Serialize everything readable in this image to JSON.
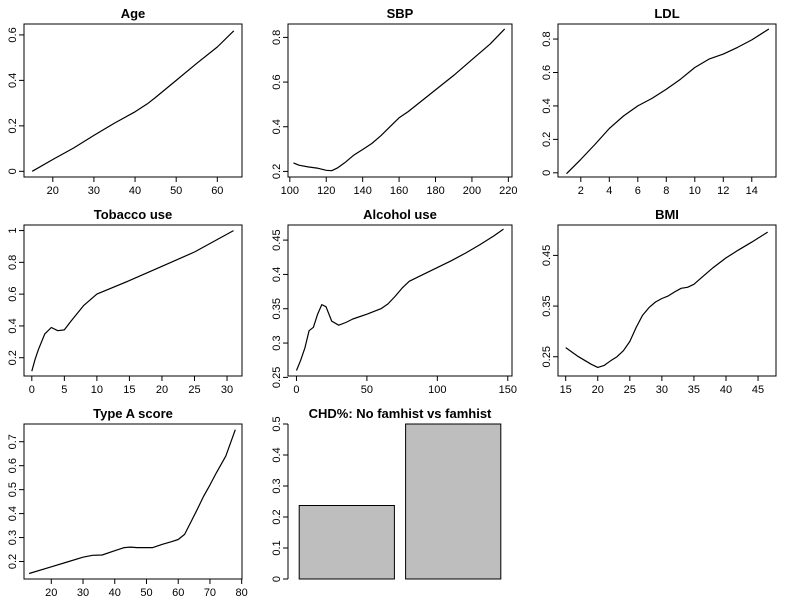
{
  "page": {
    "background": "#ffffff",
    "line_color": "#000000",
    "bar_fill": "#bebebe",
    "bar_stroke": "#000000"
  },
  "chart_data": [
    {
      "id": "age",
      "type": "line",
      "title": "Age",
      "xlabel": "",
      "ylabel": "",
      "xlim": [
        13.0,
        66.0
      ],
      "ylim": [
        -0.025,
        0.648
      ],
      "xticks": [
        20,
        30,
        40,
        50,
        60
      ],
      "yticks": [
        0.0,
        0.2,
        0.4,
        0.6
      ],
      "series": [
        {
          "x": [
            15,
            20,
            25,
            30,
            35,
            40,
            43,
            45,
            50,
            55,
            60,
            64
          ],
          "y": [
            0.0,
            0.052,
            0.102,
            0.158,
            0.212,
            0.262,
            0.297,
            0.325,
            0.4,
            0.475,
            0.547,
            0.618
          ]
        }
      ]
    },
    {
      "id": "sbp",
      "type": "line",
      "title": "SBP",
      "xlabel": "",
      "ylabel": "",
      "xlim": [
        99.0,
        222.0
      ],
      "ylim": [
        0.175,
        0.86
      ],
      "xticks": [
        100,
        120,
        140,
        160,
        180,
        200,
        220
      ],
      "yticks": [
        0.2,
        0.4,
        0.6,
        0.8
      ],
      "series": [
        {
          "x": [
            102,
            105,
            110,
            115,
            120,
            123,
            126,
            130,
            135,
            140,
            145,
            150,
            155,
            160,
            165,
            170,
            180,
            190,
            200,
            210,
            218
          ],
          "y": [
            0.238,
            0.228,
            0.22,
            0.215,
            0.205,
            0.203,
            0.215,
            0.238,
            0.272,
            0.298,
            0.325,
            0.36,
            0.4,
            0.44,
            0.468,
            0.5,
            0.565,
            0.63,
            0.7,
            0.77,
            0.838
          ]
        }
      ]
    },
    {
      "id": "ldl",
      "type": "line",
      "title": "LDL",
      "xlabel": "",
      "ylabel": "",
      "xlim": [
        0.4,
        15.7
      ],
      "ylim": [
        -0.025,
        0.89
      ],
      "xticks": [
        2,
        4,
        6,
        8,
        10,
        12,
        14
      ],
      "yticks": [
        0.0,
        0.2,
        0.4,
        0.6,
        0.8
      ],
      "series": [
        {
          "x": [
            1,
            2,
            3,
            4,
            5,
            6,
            7,
            8,
            9,
            10,
            11,
            12,
            13,
            14,
            15.2
          ],
          "y": [
            -0.005,
            0.08,
            0.17,
            0.265,
            0.34,
            0.4,
            0.445,
            0.5,
            0.56,
            0.63,
            0.68,
            0.71,
            0.75,
            0.795,
            0.86
          ]
        }
      ]
    },
    {
      "id": "tobacco",
      "type": "line",
      "title": "Tobacco use",
      "xlabel": "",
      "ylabel": "",
      "xlim": [
        -1.2,
        32.3
      ],
      "ylim": [
        0.085,
        1.035
      ],
      "xticks": [
        0,
        5,
        10,
        15,
        20,
        25,
        30
      ],
      "yticks": [
        0.2,
        0.4,
        0.6,
        0.8,
        1.0
      ],
      "series": [
        {
          "x": [
            0,
            0.5,
            1,
            2,
            3,
            4,
            5,
            6,
            7,
            8,
            9,
            10,
            15,
            20,
            25,
            31
          ],
          "y": [
            0.115,
            0.19,
            0.25,
            0.35,
            0.39,
            0.37,
            0.375,
            0.43,
            0.48,
            0.53,
            0.565,
            0.6,
            0.685,
            0.775,
            0.865,
            1.0
          ]
        }
      ]
    },
    {
      "id": "alcohol",
      "type": "line",
      "title": "Alcohol use",
      "xlabel": "",
      "ylabel": "",
      "xlim": [
        -6.0,
        153.0
      ],
      "ylim": [
        0.252,
        0.472
      ],
      "xticks": [
        0,
        50,
        100,
        150
      ],
      "yticks": [
        0.25,
        0.3,
        0.35,
        0.4,
        0.45
      ],
      "series": [
        {
          "x": [
            0,
            3,
            6,
            9,
            12,
            15,
            18,
            21,
            25,
            30,
            35,
            40,
            50,
            60,
            65,
            70,
            75,
            80,
            90,
            100,
            110,
            120,
            130,
            140,
            147
          ],
          "y": [
            0.26,
            0.275,
            0.293,
            0.318,
            0.323,
            0.342,
            0.356,
            0.353,
            0.332,
            0.326,
            0.33,
            0.335,
            0.342,
            0.35,
            0.357,
            0.368,
            0.38,
            0.39,
            0.4,
            0.41,
            0.42,
            0.431,
            0.443,
            0.456,
            0.466
          ]
        }
      ]
    },
    {
      "id": "bmi",
      "type": "line",
      "title": "BMI",
      "xlabel": "",
      "ylabel": "",
      "xlim": [
        13.8,
        47.8
      ],
      "ylim": [
        0.212,
        0.51
      ],
      "xticks": [
        15,
        20,
        25,
        30,
        35,
        40,
        45
      ],
      "yticks": [
        0.25,
        0.35,
        0.45
      ],
      "series": [
        {
          "x": [
            15,
            17,
            19,
            20,
            21,
            22,
            23,
            24,
            25,
            26,
            27,
            28,
            29,
            30,
            31,
            32,
            33,
            34,
            35,
            36,
            38,
            40,
            42,
            44,
            46.5
          ],
          "y": [
            0.268,
            0.25,
            0.235,
            0.229,
            0.233,
            0.242,
            0.25,
            0.262,
            0.28,
            0.308,
            0.332,
            0.347,
            0.358,
            0.365,
            0.37,
            0.378,
            0.385,
            0.387,
            0.393,
            0.404,
            0.426,
            0.445,
            0.461,
            0.476,
            0.496
          ]
        }
      ]
    },
    {
      "id": "typea",
      "type": "line",
      "title": "Type A score",
      "xlabel": "",
      "ylabel": "",
      "xlim": [
        11.4,
        80.1
      ],
      "ylim": [
        0.127,
        0.774
      ],
      "xticks": [
        20,
        30,
        40,
        50,
        60,
        70,
        80
      ],
      "yticks": [
        0.2,
        0.3,
        0.4,
        0.5,
        0.6,
        0.7
      ],
      "series": [
        {
          "x": [
            13,
            20,
            25,
            30,
            33,
            36,
            40,
            43,
            45,
            47,
            50,
            52,
            55,
            58,
            60,
            62,
            64,
            66,
            68,
            70,
            72,
            75,
            78
          ],
          "y": [
            0.15,
            0.178,
            0.198,
            0.218,
            0.226,
            0.227,
            0.245,
            0.258,
            0.26,
            0.258,
            0.258,
            0.258,
            0.272,
            0.283,
            0.292,
            0.313,
            0.365,
            0.418,
            0.472,
            0.52,
            0.57,
            0.64,
            0.75
          ]
        }
      ]
    },
    {
      "id": "chd",
      "type": "bar",
      "title": "CHD%: No famhist vs famhist",
      "xlabel": "",
      "ylabel": "",
      "categories": [
        "",
        ""
      ],
      "values": [
        0.237,
        0.5
      ],
      "ylim": [
        0.0,
        0.5
      ],
      "yticks": [
        0.0,
        0.1,
        0.2,
        0.3,
        0.4,
        0.5
      ]
    }
  ]
}
